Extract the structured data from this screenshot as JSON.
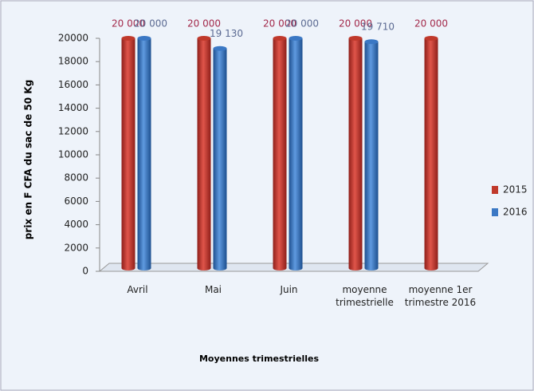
{
  "chart_data": {
    "type": "bar",
    "y_label": "prix en F CFA du sac de 50 Kg",
    "x_label": "Moyennes trimestrielles",
    "categories": [
      "Avril",
      "Mai",
      "Juin",
      "moyenne trimestrielle",
      "moyenne 1er trimestre 2016"
    ],
    "series": [
      {
        "name": "2015",
        "color": "#c0392b",
        "values": [
          20000,
          20000,
          20000,
          20000,
          20000
        ],
        "value_labels": [
          "20 000",
          "20 000",
          "20 000",
          "20 000",
          "20 000"
        ],
        "label_color": "#a3294a"
      },
      {
        "name": "2016",
        "color": "#3b78c4",
        "values": [
          20000,
          19130,
          20000,
          19710,
          null
        ],
        "value_labels": [
          "20 000",
          "19 130",
          "20 000",
          "19 710",
          null
        ],
        "label_color": "#5b6a92"
      }
    ],
    "ylim": [
      0,
      20000
    ],
    "yticks": [
      0,
      2000,
      4000,
      6000,
      8000,
      10000,
      12000,
      14000,
      16000,
      18000,
      20000
    ],
    "legend": "right"
  }
}
